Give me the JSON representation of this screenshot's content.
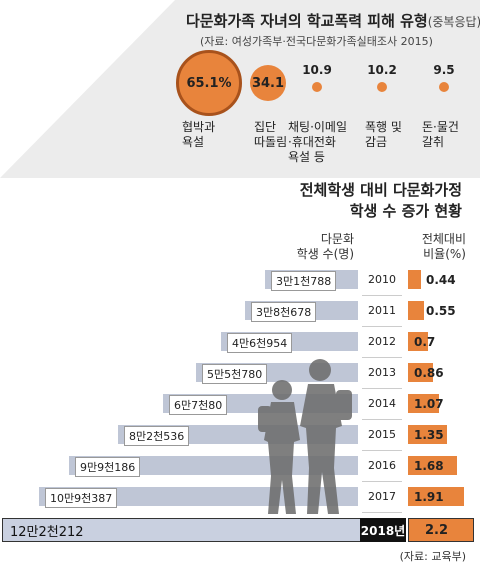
{
  "top_chart": {
    "title": "다문화가족 자녀의 학교폭력 피해 유형",
    "subtitle": "(중복응답)",
    "source": "(자료: 여성가족부·전국다문화가족실태조사 2015)",
    "items": [
      {
        "value": "65.1%",
        "label": [
          "협박과",
          "욕설"
        ]
      },
      {
        "value": "34.1",
        "label": [
          "집단",
          "따돌림"
        ]
      },
      {
        "value": "10.9",
        "label": [
          "채팅·이메일",
          "·휴대전화",
          "욕설 등"
        ]
      },
      {
        "value": "10.2",
        "label": [
          "폭행 및",
          "감금"
        ]
      },
      {
        "value": "9.5",
        "label": [
          "돈·물건",
          "갈취"
        ]
      }
    ]
  },
  "bottom_chart": {
    "title_line1": "전체학생 대비 다문화가정",
    "title_line2": "학생 수 증가 현황",
    "col_left_line1": "다문화",
    "col_left_line2": "학생 수(명)",
    "col_right_line1": "전체대비",
    "col_right_line2": "비율(%)",
    "source": "(자료: 교육부)"
  },
  "chart_data": {
    "type": "bar",
    "categories": [
      "2010",
      "2011",
      "2012",
      "2013",
      "2014",
      "2015",
      "2016",
      "2017",
      "2018년"
    ],
    "students": [
      31788,
      38678,
      46954,
      55780,
      67080,
      82536,
      99186,
      109387,
      122212
    ],
    "student_labels": [
      "3만1천788",
      "3만8천678",
      "4만6천954",
      "5만5천780",
      "6만7천80",
      "8만2천536",
      "9만9천186",
      "10만9천387",
      "12만2천212"
    ],
    "ratio": [
      0.44,
      0.55,
      0.7,
      0.86,
      1.07,
      1.35,
      1.68,
      1.91,
      2.2
    ],
    "ratio_labels": [
      "0.44",
      "0.55",
      "0.7",
      "0.86",
      "1.07",
      "1.35",
      "1.68",
      "1.91",
      "2.2"
    ]
  },
  "colors": {
    "orange": "#e8843c",
    "bar": "#bfc6d6",
    "dark_orange": "#a8521c"
  }
}
